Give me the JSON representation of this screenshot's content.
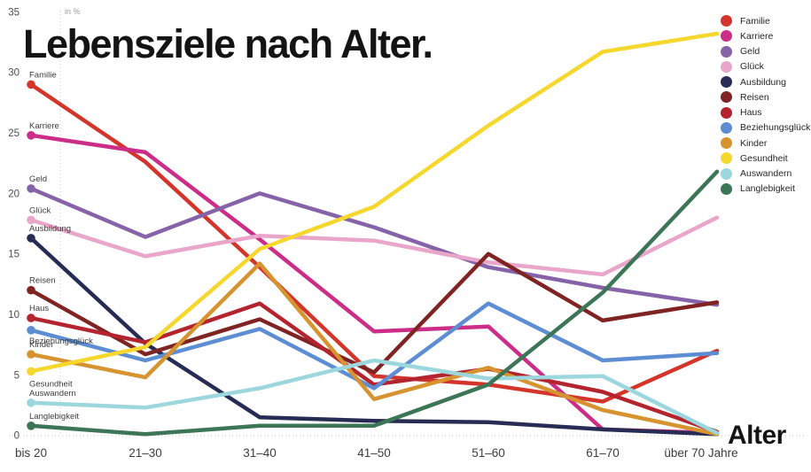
{
  "title": "Lebensziele nach Alter.",
  "y_axis": {
    "unit_label": "in %",
    "ticks": [
      0,
      5,
      10,
      15,
      20,
      25,
      30,
      35
    ],
    "max": 35
  },
  "x_axis": {
    "title": "Alter",
    "categories": [
      "bis 20",
      "21–30",
      "31–40",
      "41–50",
      "51–60",
      "61–70",
      "über 70 Jahre"
    ]
  },
  "chart_data": {
    "type": "line",
    "title": "Lebensziele nach Alter.",
    "ylabel": "in %",
    "xlabel": "Alter",
    "ylim": [
      0,
      35
    ],
    "grid": "baseline-dotted",
    "legend_position": "top-right",
    "categories": [
      "bis 20",
      "21–30",
      "31–40",
      "41–50",
      "51–60",
      "61–70",
      "über 70 Jahre"
    ],
    "series": [
      {
        "name": "Familie",
        "color": "#d3352b",
        "values": [
          29.0,
          22.6,
          13.9,
          4.9,
          4.2,
          2.8,
          7.0
        ]
      },
      {
        "name": "Karriere",
        "color": "#cb2d88",
        "values": [
          24.8,
          23.4,
          16.2,
          8.6,
          9.0,
          0.5,
          0.2
        ]
      },
      {
        "name": "Geld",
        "color": "#8662a9",
        "values": [
          20.4,
          16.4,
          20.0,
          17.2,
          13.9,
          12.2,
          10.8
        ]
      },
      {
        "name": "Glück",
        "color": "#e9a6ca",
        "values": [
          17.8,
          14.8,
          16.5,
          16.1,
          14.3,
          13.3,
          18.0
        ]
      },
      {
        "name": "Ausbildung",
        "color": "#272c55",
        "values": [
          16.3,
          7.6,
          1.5,
          1.2,
          1.1,
          0.5,
          0.1
        ]
      },
      {
        "name": "Reisen",
        "color": "#802423",
        "values": [
          12.0,
          6.7,
          9.6,
          5.2,
          15.0,
          9.5,
          11.0
        ]
      },
      {
        "name": "Haus",
        "color": "#b3242e",
        "values": [
          9.7,
          7.7,
          10.9,
          4.2,
          5.5,
          3.6,
          0.3
        ]
      },
      {
        "name": "Beziehungsglück",
        "color": "#5d8ed3",
        "values": [
          8.7,
          6.2,
          8.8,
          3.9,
          10.9,
          6.2,
          6.8
        ]
      },
      {
        "name": "Kinder",
        "color": "#d6932f",
        "values": [
          6.7,
          4.8,
          14.2,
          3.0,
          5.6,
          2.1,
          0.1
        ]
      },
      {
        "name": "Gesundheit",
        "color": "#f6d72e",
        "values": [
          5.3,
          7.3,
          15.4,
          18.9,
          25.6,
          31.7,
          33.2
        ]
      },
      {
        "name": "Auswandern",
        "color": "#9cd7dd",
        "values": [
          2.7,
          2.3,
          3.9,
          6.2,
          4.7,
          4.9,
          0.2
        ]
      },
      {
        "name": "Langlebigkeit",
        "color": "#3d7557",
        "values": [
          0.8,
          0.1,
          0.8,
          0.8,
          4.2,
          11.8,
          21.8
        ]
      }
    ]
  }
}
